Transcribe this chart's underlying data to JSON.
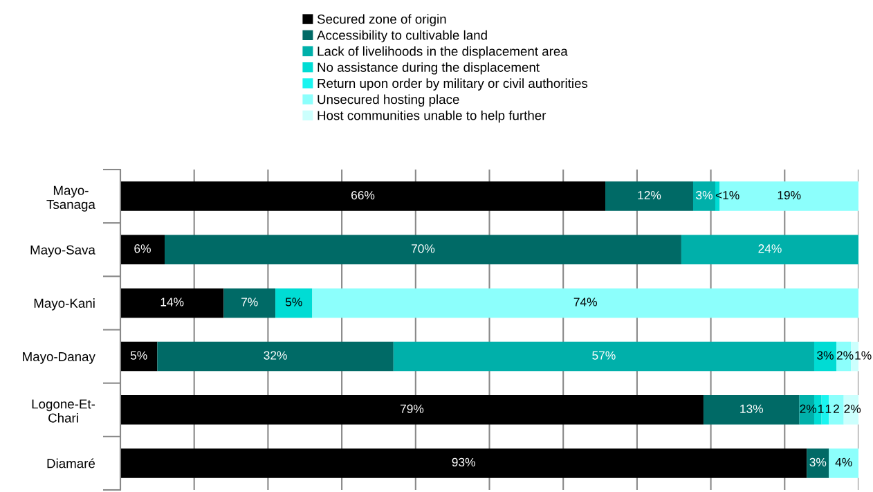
{
  "chart_data": {
    "type": "bar",
    "orientation": "horizontal",
    "stacked": true,
    "categories": [
      "Mayo-\nTsanaga",
      "Mayo-Sava",
      "Mayo-Kani",
      "Mayo-Danay",
      "Logone-Et-\nChari",
      "Diamaré"
    ],
    "series": [
      {
        "name": "Secured zone of origin",
        "color": "#000000",
        "values": [
          65.7,
          6,
          14,
          5,
          79,
          93
        ],
        "value_labels": [
          "66%",
          "6%",
          "14%",
          "5%",
          "79%",
          "93%"
        ]
      },
      {
        "name": "Accessibility to cultivable land",
        "color": "#006a66",
        "values": [
          11.9,
          70,
          7,
          32,
          13,
          3
        ],
        "value_labels": [
          "12%",
          "70%",
          "7%",
          "32%",
          "13%",
          "3%"
        ]
      },
      {
        "name": "Lack of livelihoods in the displacement area",
        "color": "#00b0aa",
        "values": [
          3,
          24,
          null,
          57,
          2,
          null
        ],
        "value_labels": [
          "3%",
          "24%",
          null,
          "57%",
          "2%",
          null
        ]
      },
      {
        "name": "No assistance during the displacement",
        "color": "#00dcd4",
        "values": [
          0.6,
          null,
          5,
          3,
          1,
          null
        ],
        "value_labels": [
          "<1%",
          null,
          "5%",
          "3%",
          "1",
          null
        ]
      },
      {
        "name": "Return upon order by military or civil authorities",
        "color": "#1af5f0",
        "values": [
          null,
          null,
          null,
          null,
          1,
          null
        ],
        "value_labels": [
          null,
          null,
          null,
          null,
          "1",
          null
        ]
      },
      {
        "name": "Unsecured hosting place",
        "color": "#8cfffc",
        "values": [
          18.8,
          null,
          74,
          2,
          2,
          4
        ],
        "value_labels": [
          "19%",
          null,
          "74%",
          "2%",
          "2",
          "4%"
        ]
      },
      {
        "name": "Host communities unable to help further",
        "color": "#ccfffd",
        "values": [
          null,
          null,
          null,
          1,
          2,
          null
        ],
        "value_labels": [
          null,
          null,
          null,
          "1%",
          "2%",
          null
        ]
      }
    ],
    "xlim": [
      0,
      100
    ],
    "xticks": [
      {
        "value": 0,
        "label": null
      },
      {
        "value": 10,
        "label": null
      },
      {
        "value": 20,
        "label": null
      },
      {
        "value": 30,
        "label": null
      },
      {
        "value": 40,
        "label": null
      },
      {
        "value": 50,
        "label": null
      },
      {
        "value": 60,
        "label": null
      },
      {
        "value": 70,
        "label": null
      },
      {
        "value": 80,
        "label": null
      },
      {
        "value": 90,
        "label": null
      },
      {
        "value": 100,
        "label": null
      }
    ],
    "grid": "x",
    "legend": "top",
    "tick_labels": "y"
  }
}
